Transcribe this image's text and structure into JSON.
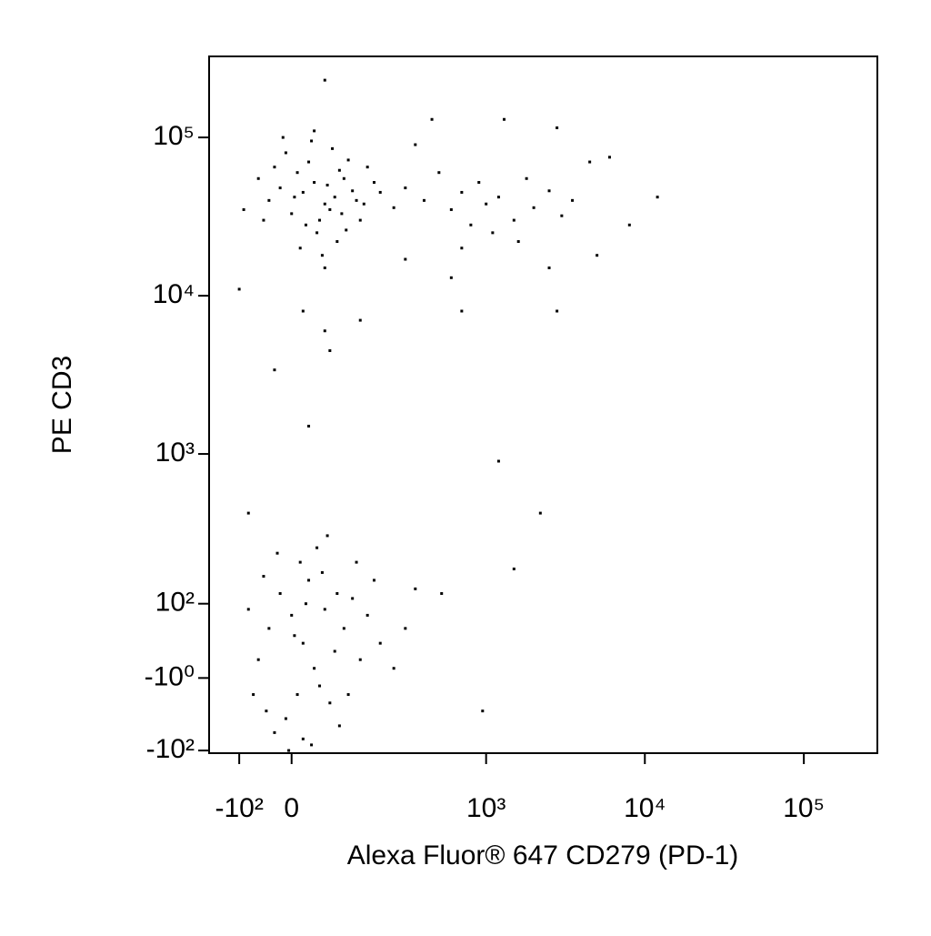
{
  "chart_data": {
    "type": "scatter",
    "x_label": "Alexa Fluor® 647 CD279 (PD-1)",
    "y_label": "PE CD3",
    "xscale": "biexponential",
    "yscale": "biexponential",
    "color": "#000000",
    "xlim": [
      -180,
      290000
    ],
    "ylim": [
      -105,
      325000
    ],
    "xticks": [
      {
        "value": -100,
        "label": "-10²"
      },
      0,
      {
        "value": 1000,
        "label": "10³"
      },
      {
        "value": 10000,
        "label": "10⁴"
      },
      {
        "value": 100000,
        "label": "10⁵"
      }
    ],
    "yticks": [
      {
        "value": -100,
        "label": "-10²"
      },
      {
        "value": -1,
        "label": "-10⁰"
      },
      {
        "value": 100,
        "label": "10²"
      },
      {
        "value": 1000,
        "label": "10³"
      },
      {
        "value": 10000,
        "label": "10⁴"
      },
      {
        "value": 100000,
        "label": "10⁵"
      }
    ],
    "x": [
      20,
      40,
      60,
      10,
      80,
      -20,
      50,
      100,
      30,
      70,
      -40,
      120,
      0,
      90,
      45,
      -10,
      150,
      65,
      25,
      110,
      -60,
      140,
      35,
      85,
      5,
      180,
      55,
      -30,
      130,
      75,
      200,
      15,
      95,
      -50,
      160,
      40,
      250,
      60,
      -15,
      105,
      300,
      400,
      500,
      600,
      700,
      800,
      900,
      1000,
      1200,
      1500,
      1800,
      2000,
      2500,
      3000,
      3500,
      4500,
      6000,
      8000,
      12000,
      350,
      450,
      700,
      1300,
      2800,
      5000,
      2500,
      600,
      1100,
      300,
      1600,
      -90,
      -100,
      20,
      60,
      140,
      700,
      2800,
      60,
      70,
      -30,
      30,
      1200,
      2200,
      1500,
      950,
      520,
      350,
      -80,
      0,
      20,
      -20,
      40,
      10,
      60,
      -40,
      30,
      80,
      -10,
      50,
      100,
      -60,
      15,
      70,
      120,
      -30,
      25,
      90,
      5,
      140,
      -50,
      45,
      160,
      -70,
      35,
      200,
      55,
      -5,
      110,
      -80,
      65,
      180,
      250,
      20,
      130,
      -25,
      85,
      300,
      -45
    ],
    "y": [
      45000,
      52000,
      38000,
      60000,
      42000,
      48000,
      30000,
      55000,
      70000,
      35000,
      40000,
      46000,
      33000,
      62000,
      25000,
      80000,
      38000,
      50000,
      28000,
      72000,
      55000,
      30000,
      95000,
      22000,
      42000,
      52000,
      18000,
      65000,
      40000,
      85000,
      45000,
      20000,
      33000,
      30000,
      65000,
      110000,
      36000,
      15000,
      100000,
      26000,
      48000,
      40000,
      60000,
      35000,
      45000,
      28000,
      52000,
      38000,
      42000,
      30000,
      55000,
      36000,
      46000,
      32000,
      40000,
      70000,
      75000,
      28000,
      42000,
      90000,
      130000,
      20000,
      130000,
      115000,
      18000,
      15000,
      13000,
      25000,
      17000,
      22000,
      35000,
      11000,
      8000,
      6000,
      7000,
      8000,
      8000,
      230000,
      4500,
      3400,
      1500,
      900,
      420,
      180,
      -40,
      120,
      130,
      420,
      80,
      40,
      120,
      10,
      -20,
      90,
      60,
      150,
      30,
      -50,
      -10,
      60,
      20,
      200,
      -30,
      110,
      -70,
      100,
      -60,
      50,
      20,
      160,
      250,
      80,
      -20,
      -90,
      40,
      170,
      -100,
      -20,
      90,
      300,
      150,
      10,
      -80,
      200,
      230,
      120,
      60,
      -40
    ]
  }
}
